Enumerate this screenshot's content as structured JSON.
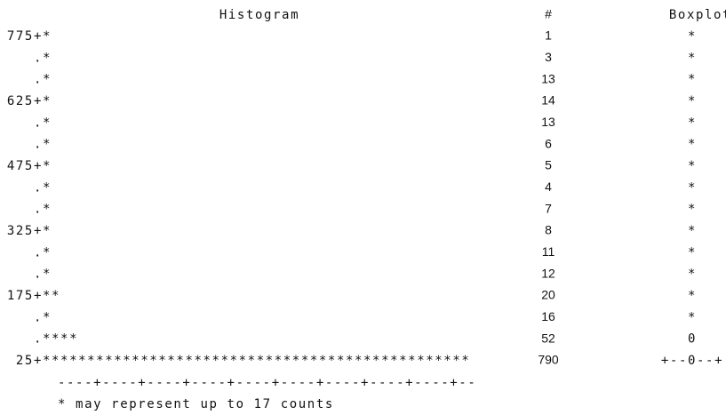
{
  "title": "Histogram",
  "count_header": "#",
  "box_header": "Boxplot",
  "rows": [
    {
      "axis": "775+",
      "bar": "*",
      "count": 1,
      "box": "*"
    },
    {
      "axis": ".",
      "bar": "*",
      "count": 3,
      "box": "*"
    },
    {
      "axis": ".",
      "bar": "*",
      "count": 13,
      "box": "*"
    },
    {
      "axis": "625+",
      "bar": "*",
      "count": 14,
      "box": "*"
    },
    {
      "axis": ".",
      "bar": "*",
      "count": 13,
      "box": "*"
    },
    {
      "axis": ".",
      "bar": "*",
      "count": 6,
      "box": "*"
    },
    {
      "axis": "475+",
      "bar": "*",
      "count": 5,
      "box": "*"
    },
    {
      "axis": ".",
      "bar": "*",
      "count": 4,
      "box": "*"
    },
    {
      "axis": ".",
      "bar": "*",
      "count": 7,
      "box": "*"
    },
    {
      "axis": "325+",
      "bar": "*",
      "count": 8,
      "box": "*"
    },
    {
      "axis": ".",
      "bar": "*",
      "count": 11,
      "box": "*"
    },
    {
      "axis": ".",
      "bar": "*",
      "count": 12,
      "box": "*"
    },
    {
      "axis": "175+",
      "bar": "**",
      "count": 20,
      "box": "*"
    },
    {
      "axis": ".",
      "bar": "*",
      "count": 16,
      "box": "*"
    },
    {
      "axis": ".",
      "bar": "****",
      "count": 52,
      "box": "0"
    },
    {
      "axis": "25+",
      "bar": "************************************************",
      "count": 790,
      "box": "+--0--+"
    }
  ],
  "scale": "----+----+----+----+----+----+----+----+----+--",
  "footnote": "* may represent up to 17 counts"
}
